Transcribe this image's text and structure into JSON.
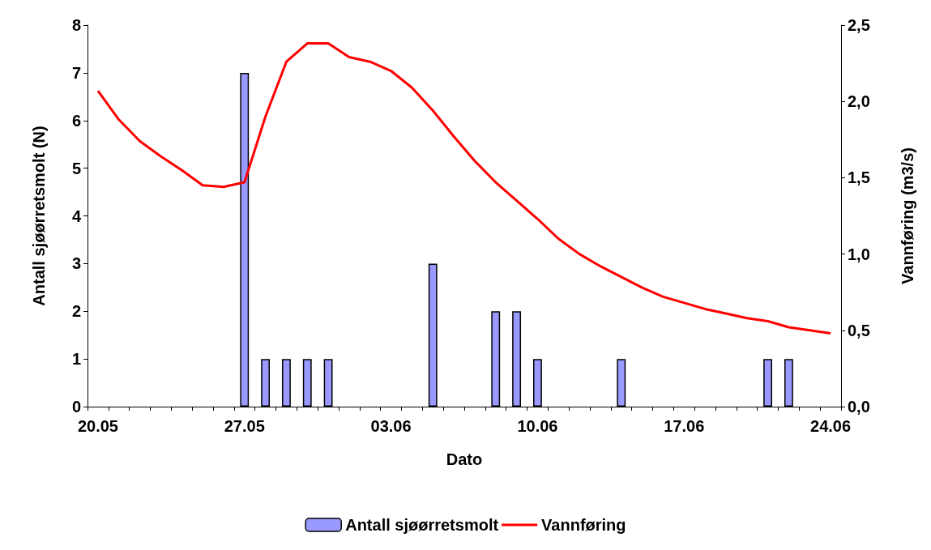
{
  "chart_data": {
    "type": "bar",
    "xlabel": "Dato",
    "ylabel": "Antall sjøørretsmolt (N)",
    "y2label": "Vannføring (m3/s)",
    "categories": [
      "20.05",
      null,
      null,
      null,
      null,
      null,
      null,
      "27.05",
      null,
      null,
      null,
      null,
      null,
      null,
      "03.06",
      null,
      null,
      null,
      null,
      null,
      null,
      "10.06",
      null,
      null,
      null,
      null,
      null,
      null,
      "17.06",
      null,
      null,
      null,
      null,
      null,
      null,
      "24.06"
    ],
    "series": [
      {
        "name": "Antall sjøørretsmolt",
        "color": "#9999ff",
        "values": [
          null,
          null,
          null,
          null,
          null,
          null,
          null,
          7,
          1,
          1,
          1,
          1,
          null,
          null,
          null,
          null,
          3,
          null,
          null,
          2,
          2,
          1,
          null,
          null,
          null,
          1,
          null,
          null,
          null,
          null,
          null,
          null,
          1,
          1,
          null,
          null
        ]
      },
      {
        "name": "Vannføring",
        "type": "line",
        "axis": "y2",
        "color": "#ff0000",
        "values": [
          2.07,
          1.88,
          1.74,
          1.64,
          1.55,
          1.45,
          1.44,
          1.47,
          1.9,
          2.26,
          2.38,
          2.38,
          2.29,
          2.26,
          2.2,
          2.09,
          1.94,
          1.77,
          1.61,
          1.47,
          1.35,
          1.23,
          1.1,
          1.0,
          0.92,
          0.85,
          0.78,
          0.72,
          0.68,
          0.64,
          0.61,
          0.58,
          0.56,
          0.52,
          0.5,
          0.48
        ]
      }
    ],
    "ylim": [
      0,
      8
    ],
    "yticks": [
      0,
      1,
      2,
      3,
      4,
      5,
      6,
      7,
      8
    ],
    "y2lim": [
      0,
      2.5
    ],
    "y2ticks": [
      {
        "value": 0,
        "label": "0,0"
      },
      {
        "value": 0.5,
        "label": "0,5"
      },
      {
        "value": 1,
        "label": "1,0"
      },
      {
        "value": 1.5,
        "label": "1,5"
      },
      {
        "value": 2,
        "label": "2,0"
      },
      {
        "value": 2.5,
        "label": "2,5"
      }
    ],
    "grid": false,
    "legend": "bottom",
    "marker": "none",
    "line_style": "solid"
  }
}
